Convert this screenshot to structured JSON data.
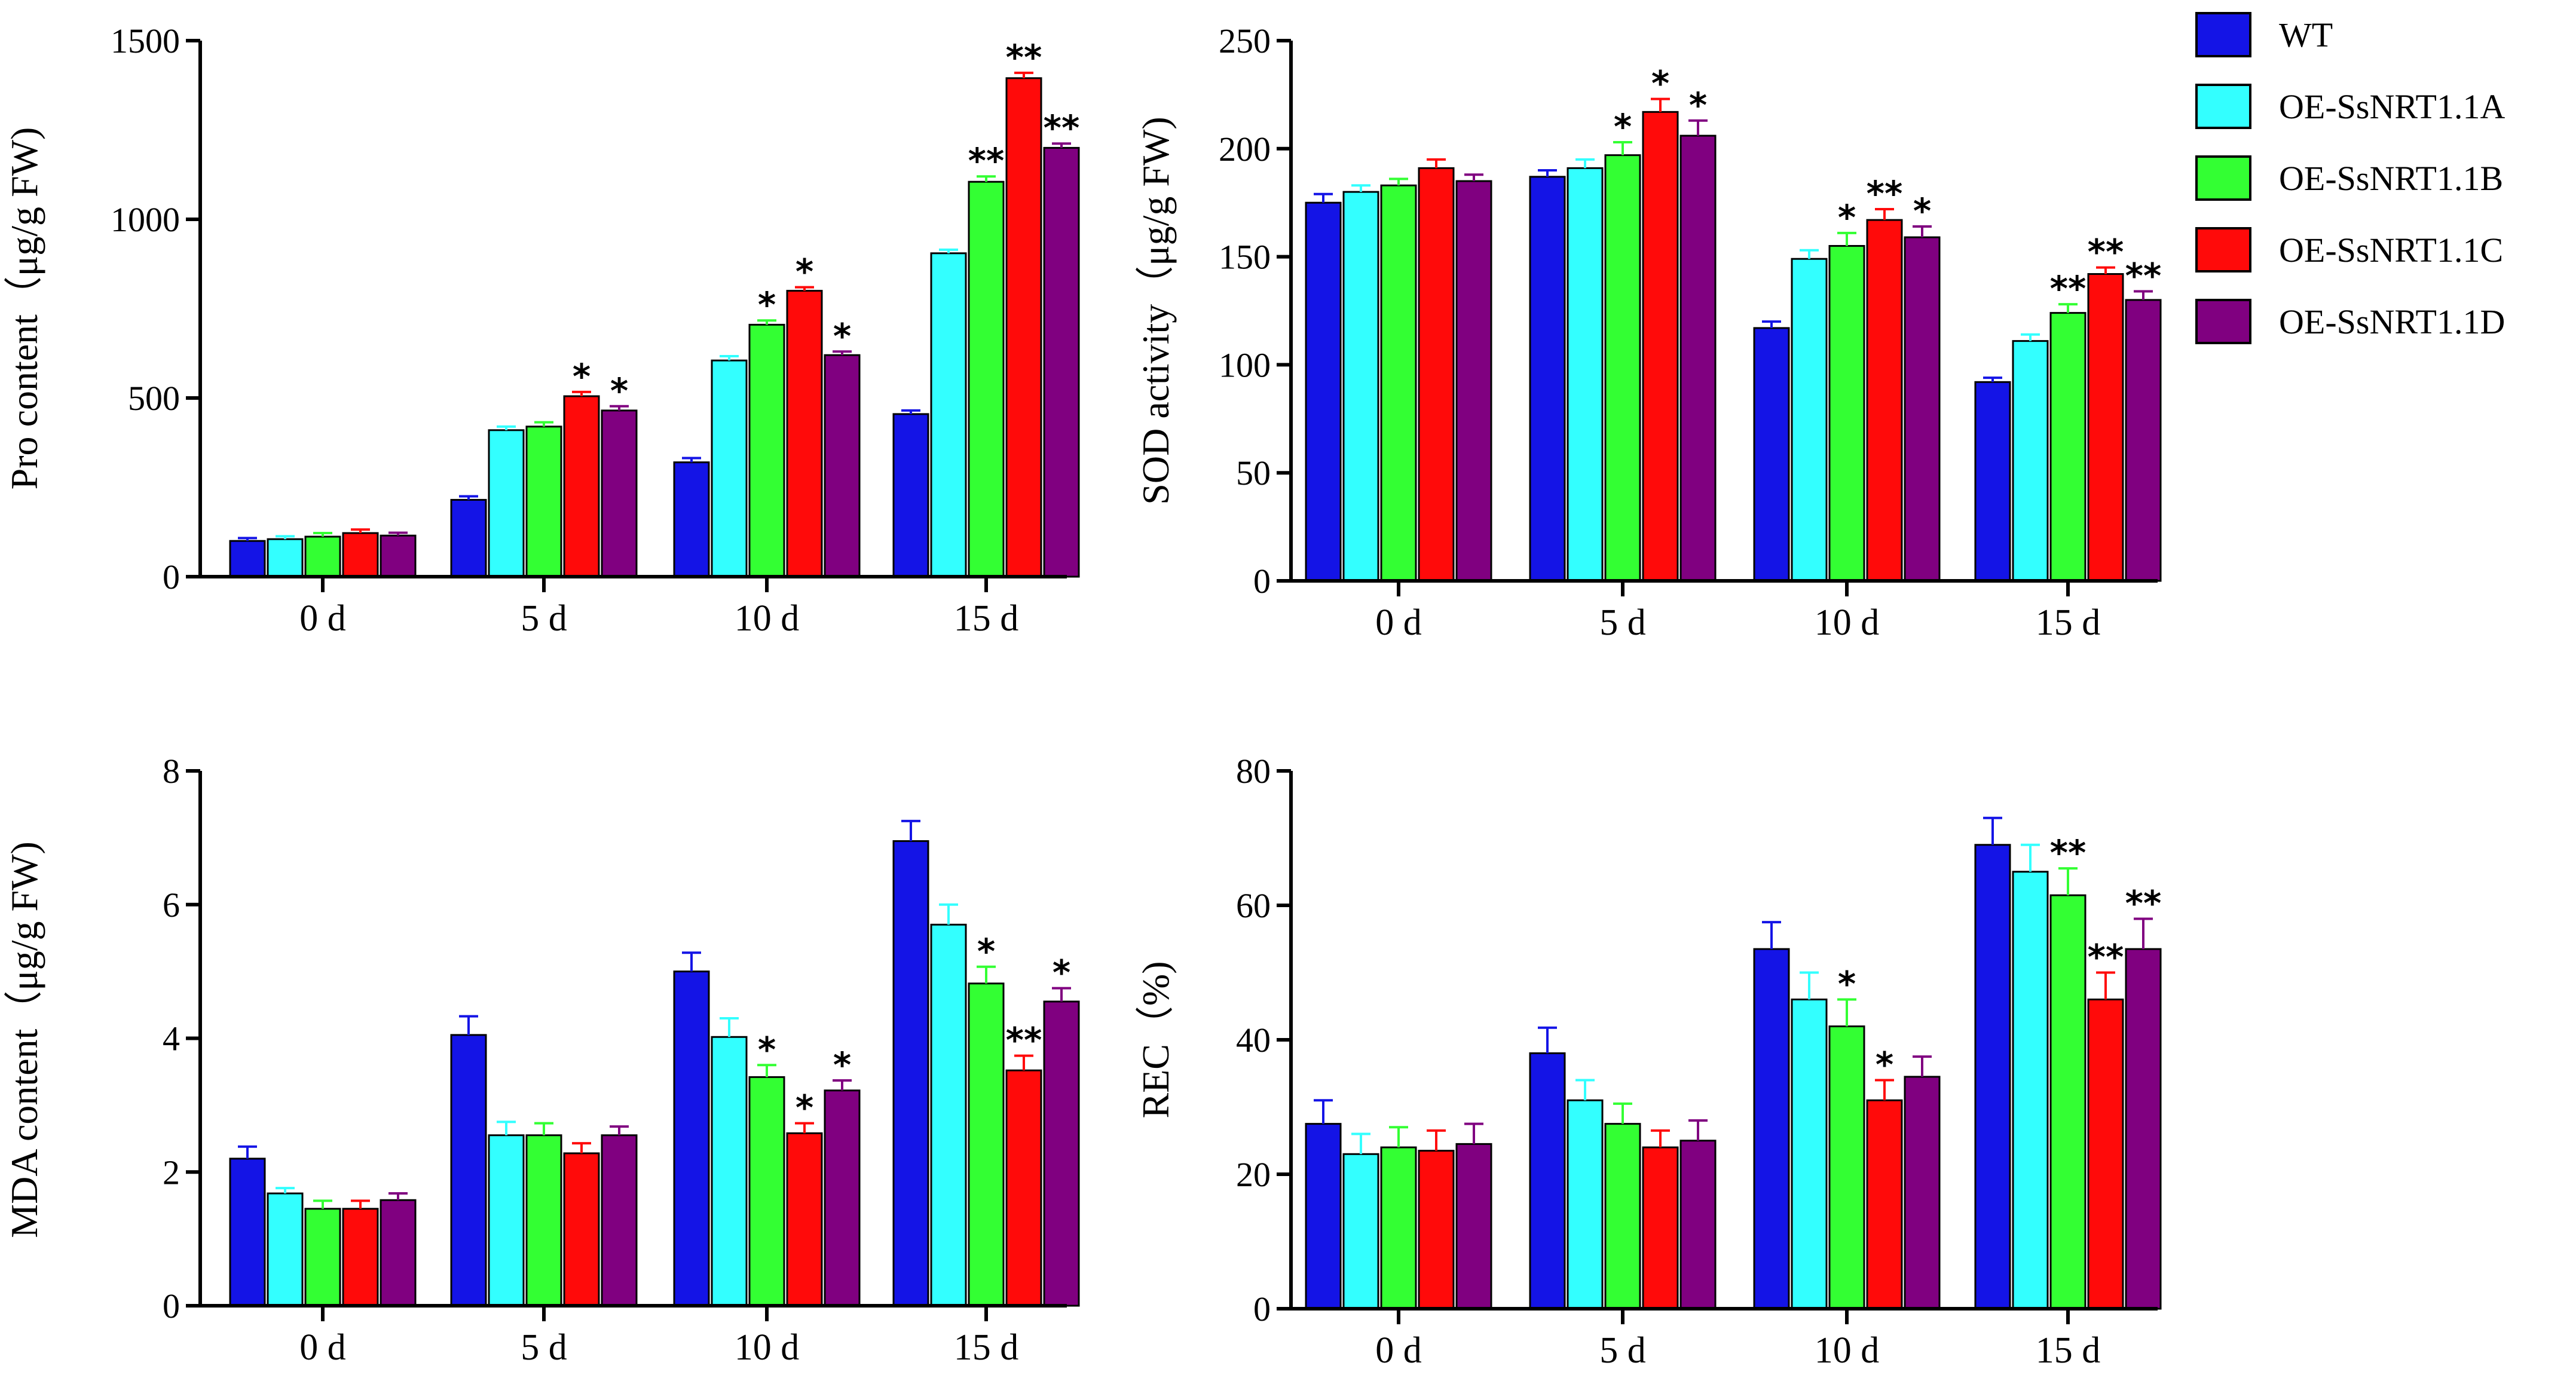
{
  "colors": {
    "WT": "#1414e6",
    "OE-SsNRT1.1A": "#33ffff",
    "OE-SsNRT1.1B": "#33ff33",
    "OE-SsNRT1.1C": "#ff0a0a",
    "OE-SsNRT1.1D": "#800080"
  },
  "legend": [
    "WT",
    "OE-SsNRT1.1A",
    "OE-SsNRT1.1B",
    "OE-SsNRT1.1C",
    "OE-SsNRT1.1D"
  ],
  "chart_data": [
    {
      "id": "pro",
      "type": "bar",
      "ylabel": "Pro content（μg/g FW)",
      "categories": [
        "0 d",
        "5 d",
        "10 d",
        "15 d"
      ],
      "ylim": [
        0,
        1500
      ],
      "yticks": [
        "0",
        "500",
        "1000",
        "1500"
      ],
      "ytick_values": [
        0,
        500,
        1000,
        1500
      ],
      "series": [
        {
          "name": "WT",
          "values": [
            100,
            215,
            320,
            455
          ],
          "errors": [
            8,
            10,
            12,
            10
          ],
          "sig": [
            "",
            "",
            "",
            ""
          ]
        },
        {
          "name": "OE-SsNRT1.1A",
          "values": [
            105,
            410,
            605,
            905
          ],
          "errors": [
            8,
            10,
            12,
            10
          ],
          "sig": [
            "",
            "",
            "",
            ""
          ]
        },
        {
          "name": "OE-SsNRT1.1B",
          "values": [
            112,
            420,
            705,
            1105
          ],
          "errors": [
            10,
            12,
            12,
            15
          ],
          "sig": [
            "",
            "",
            "*",
            "**"
          ]
        },
        {
          "name": "OE-SsNRT1.1C",
          "values": [
            122,
            505,
            800,
            1395
          ],
          "errors": [
            10,
            12,
            10,
            15
          ],
          "sig": [
            "",
            "*",
            "*",
            "**"
          ]
        },
        {
          "name": "OE-SsNRT1.1D",
          "values": [
            115,
            465,
            620,
            1200
          ],
          "errors": [
            8,
            12,
            10,
            12
          ],
          "sig": [
            "",
            "*",
            "*",
            "**"
          ]
        }
      ]
    },
    {
      "id": "sod",
      "type": "bar",
      "ylabel": "SOD activity（μg/g FW)",
      "categories": [
        "0 d",
        "5 d",
        "10 d",
        "15 d"
      ],
      "ylim": [
        0,
        250
      ],
      "yticks": [
        "0",
        "50",
        "100",
        "150",
        "200",
        "250"
      ],
      "ytick_values": [
        0,
        50,
        100,
        150,
        200,
        250
      ],
      "series": [
        {
          "name": "WT",
          "values": [
            175,
            187,
            117,
            92
          ],
          "errors": [
            4,
            3,
            3,
            2
          ],
          "sig": [
            "",
            "",
            "",
            ""
          ]
        },
        {
          "name": "OE-SsNRT1.1A",
          "values": [
            180,
            191,
            149,
            111
          ],
          "errors": [
            3,
            4,
            4,
            3
          ],
          "sig": [
            "",
            "",
            "",
            ""
          ]
        },
        {
          "name": "OE-SsNRT1.1B",
          "values": [
            183,
            197,
            155,
            124
          ],
          "errors": [
            3,
            6,
            6,
            4
          ],
          "sig": [
            "",
            "*",
            "*",
            "**"
          ]
        },
        {
          "name": "OE-SsNRT1.1C",
          "values": [
            191,
            217,
            167,
            142
          ],
          "errors": [
            4,
            6,
            5,
            3
          ],
          "sig": [
            "",
            "*",
            "**",
            "**"
          ]
        },
        {
          "name": "OE-SsNRT1.1D",
          "values": [
            185,
            206,
            159,
            130
          ],
          "errors": [
            3,
            7,
            5,
            4
          ],
          "sig": [
            "",
            "*",
            "*",
            "**"
          ]
        }
      ]
    },
    {
      "id": "mda",
      "type": "bar",
      "ylabel": "MDA content（μg/g FW)",
      "categories": [
        "0 d",
        "5 d",
        "10 d",
        "15 d"
      ],
      "ylim": [
        0,
        8
      ],
      "yticks": [
        "0",
        "2",
        "4",
        "6",
        "8"
      ],
      "ytick_values": [
        0,
        2,
        4,
        6,
        8
      ],
      "series": [
        {
          "name": "WT",
          "values": [
            2.2,
            4.05,
            5.0,
            6.95
          ],
          "errors": [
            0.18,
            0.28,
            0.28,
            0.3
          ],
          "sig": [
            "",
            "",
            "",
            ""
          ]
        },
        {
          "name": "OE-SsNRT1.1A",
          "values": [
            1.68,
            2.55,
            4.02,
            5.7
          ],
          "errors": [
            0.08,
            0.2,
            0.28,
            0.3
          ],
          "sig": [
            "",
            "",
            "",
            ""
          ]
        },
        {
          "name": "OE-SsNRT1.1B",
          "values": [
            1.45,
            2.55,
            3.42,
            4.82
          ],
          "errors": [
            0.12,
            0.18,
            0.18,
            0.25
          ],
          "sig": [
            "",
            "",
            "*",
            "*"
          ]
        },
        {
          "name": "OE-SsNRT1.1C",
          "values": [
            1.45,
            2.28,
            2.58,
            3.52
          ],
          "errors": [
            0.12,
            0.15,
            0.15,
            0.22
          ],
          "sig": [
            "",
            "",
            "*",
            "**"
          ]
        },
        {
          "name": "OE-SsNRT1.1D",
          "values": [
            1.58,
            2.55,
            3.22,
            4.55
          ],
          "errors": [
            0.1,
            0.13,
            0.15,
            0.2
          ],
          "sig": [
            "",
            "",
            "*",
            "*"
          ]
        }
      ]
    },
    {
      "id": "rec",
      "type": "bar",
      "ylabel": "REC（%)",
      "categories": [
        "0 d",
        "5 d",
        "10 d",
        "15 d"
      ],
      "ylim": [
        0,
        80
      ],
      "yticks": [
        "0",
        "20",
        "40",
        "60",
        "80"
      ],
      "ytick_values": [
        0,
        20,
        40,
        60,
        80
      ],
      "series": [
        {
          "name": "WT",
          "values": [
            27.5,
            38,
            53.5,
            69
          ],
          "errors": [
            3.5,
            3.8,
            4,
            4
          ],
          "sig": [
            "",
            "",
            "",
            ""
          ]
        },
        {
          "name": "OE-SsNRT1.1A",
          "values": [
            23,
            31,
            46,
            65
          ],
          "errors": [
            3,
            3,
            4,
            4
          ],
          "sig": [
            "",
            "",
            "",
            ""
          ]
        },
        {
          "name": "OE-SsNRT1.1B",
          "values": [
            24,
            27.5,
            42,
            61.5
          ],
          "errors": [
            3,
            3,
            4,
            4
          ],
          "sig": [
            "",
            "",
            "*",
            "**"
          ]
        },
        {
          "name": "OE-SsNRT1.1C",
          "values": [
            23.5,
            24,
            31,
            46
          ],
          "errors": [
            3,
            2.5,
            3,
            4
          ],
          "sig": [
            "",
            "",
            "*",
            "**"
          ]
        },
        {
          "name": "OE-SsNRT1.1D",
          "values": [
            24.5,
            25,
            34.5,
            53.5
          ],
          "errors": [
            3,
            3,
            3,
            4.5
          ],
          "sig": [
            "",
            "",
            "",
            "**"
          ]
        }
      ]
    }
  ]
}
